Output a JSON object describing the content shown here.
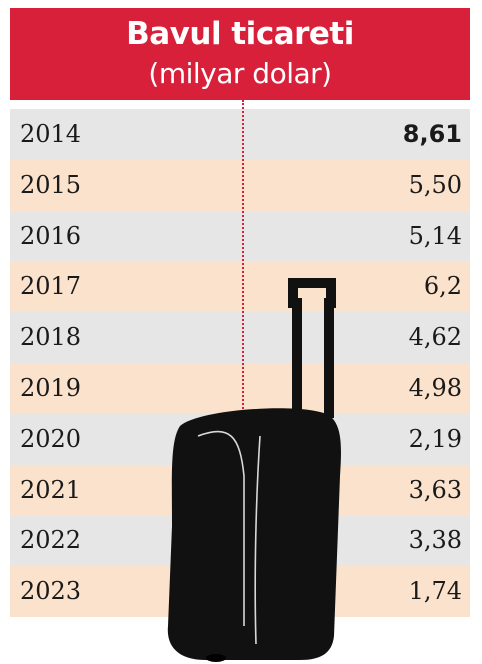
{
  "chart_data": {
    "type": "table",
    "title": "Bavul ticareti",
    "subtitle": "(milyar dolar)",
    "categories": [
      "2014",
      "2015",
      "2016",
      "2017",
      "2018",
      "2019",
      "2020",
      "2021",
      "2022",
      "2023"
    ],
    "values": [
      8.61,
      5.5,
      5.14,
      6.2,
      4.62,
      4.98,
      2.19,
      3.63,
      3.38,
      1.74
    ],
    "value_labels": [
      "8,61",
      "5,50",
      "5,14",
      "6,2",
      "4,62",
      "4,98",
      "2,19",
      "3,63",
      "3,38",
      "1,74"
    ],
    "highlighted": "2014"
  },
  "colors": {
    "header": "#d8203a",
    "row_gray": "#e6e6e6",
    "row_peach": "#fbe2cc",
    "divider": "#d8203a"
  },
  "illustration": "suitcase-icon"
}
